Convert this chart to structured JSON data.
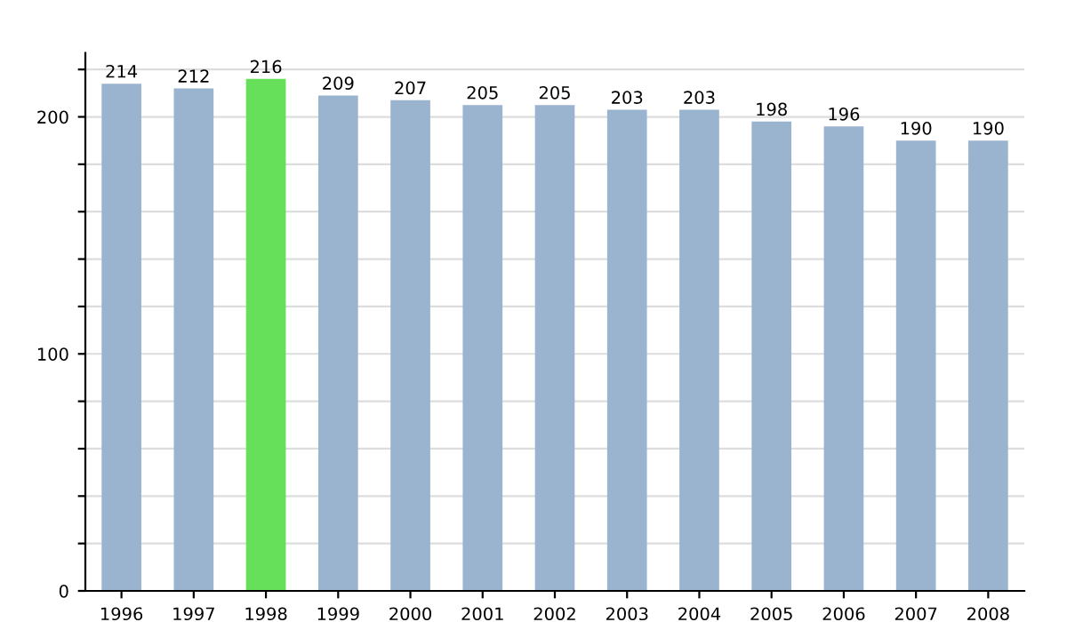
{
  "chart_data": {
    "type": "bar",
    "categories": [
      "1996",
      "1997",
      "1998",
      "1999",
      "2000",
      "2001",
      "2002",
      "2003",
      "2004",
      "2005",
      "2006",
      "2007",
      "2008"
    ],
    "values": [
      214,
      212,
      216,
      209,
      207,
      205,
      205,
      203,
      203,
      198,
      196,
      190,
      190
    ],
    "colors": [
      "#9ab3cf",
      "#9ab3cf",
      "#66e05a",
      "#9ab3cf",
      "#9ab3cf",
      "#9ab3cf",
      "#9ab3cf",
      "#9ab3cf",
      "#9ab3cf",
      "#9ab3cf",
      "#9ab3cf",
      "#9ab3cf",
      "#9ab3cf"
    ],
    "ylim": [
      0,
      227
    ],
    "yticks": [
      0,
      {
        "value": 20,
        "label": null
      },
      {
        "value": 40,
        "label": null
      },
      {
        "value": 60,
        "label": null
      },
      {
        "value": 80,
        "label": null
      },
      100,
      {
        "value": 120,
        "label": null
      },
      {
        "value": 140,
        "label": null
      },
      {
        "value": 160,
        "label": null
      },
      {
        "value": 180,
        "label": null
      },
      200,
      {
        "value": 220,
        "label": null
      }
    ],
    "grid": "y",
    "data_labels": true
  }
}
